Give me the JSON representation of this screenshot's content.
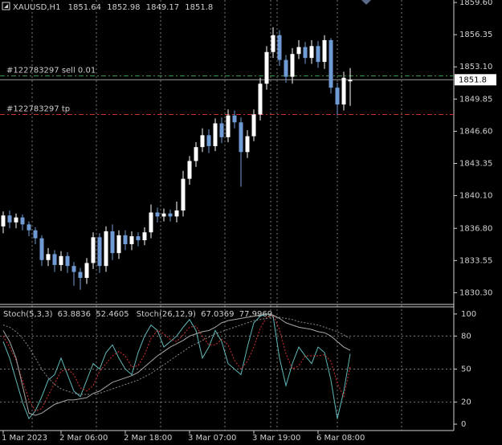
{
  "chart_data": [
    {
      "type": "candlestick",
      "symbol": "XAUUSD,H1",
      "categories": [
        "1 Mar 2023",
        null,
        null,
        null,
        null,
        null,
        null,
        null,
        null,
        "2 Mar 06:00",
        null,
        null,
        null,
        null,
        null,
        null,
        null,
        null,
        null,
        "2 Mar 18:00",
        null,
        null,
        null,
        null,
        null,
        null,
        null,
        null,
        null,
        "3 Mar 07:00",
        null,
        null,
        null,
        null,
        null,
        null,
        null,
        null,
        null,
        "3 Mar 19:00",
        null,
        null,
        null,
        null,
        null,
        null,
        null,
        null,
        null,
        "6 Mar 08:00",
        null,
        null,
        null,
        null,
        null
      ],
      "open": [
        1837.0,
        1838.1,
        1837.4,
        1837.9,
        1837.2,
        1836.6,
        1835.8,
        1833.6,
        1834.2,
        1833.1,
        1834.0,
        1833.0,
        1832.4,
        1831.8,
        1833.3,
        1835.9,
        1833.0,
        1836.5,
        1834.3,
        1836.1,
        1835.2,
        1836.0,
        1835.6,
        1836.4,
        1838.4,
        1838.0,
        1838.3,
        1838.0,
        1838.6,
        1841.8,
        1843.6,
        1845.0,
        1846.2,
        1845.1,
        1847.4,
        1846.0,
        1848.2,
        1847.5,
        1844.5,
        1846.1,
        1848.3,
        1851.4,
        1854.6,
        1856.3,
        1853.8,
        1852.1,
        1854.4,
        1855.1,
        1854.0,
        1855.2,
        1853.6,
        1855.8,
        1851.0,
        1849.3,
        1851.64
      ],
      "high": [
        1838.5,
        1838.6,
        1838.3,
        1838.2,
        1837.5,
        1836.9,
        1836.1,
        1834.8,
        1834.6,
        1834.5,
        1834.4,
        1833.4,
        1832.8,
        1833.8,
        1836.4,
        1836.3,
        1837.0,
        1837.2,
        1836.6,
        1836.6,
        1836.5,
        1836.4,
        1836.9,
        1839.2,
        1838.9,
        1838.8,
        1838.7,
        1839.5,
        1842.6,
        1844.1,
        1845.5,
        1846.9,
        1846.8,
        1847.9,
        1848.0,
        1848.8,
        1848.7,
        1848.0,
        1846.7,
        1848.8,
        1852.0,
        1855.2,
        1857.1,
        1856.8,
        1854.3,
        1855.0,
        1855.8,
        1855.6,
        1855.8,
        1855.7,
        1856.3,
        1856.0,
        1851.5,
        1852.6,
        1852.98
      ],
      "low": [
        1836.3,
        1836.8,
        1836.8,
        1836.6,
        1836.0,
        1835.2,
        1833.0,
        1833.0,
        1832.4,
        1832.5,
        1832.3,
        1831.0,
        1830.6,
        1831.2,
        1832.7,
        1832.3,
        1832.4,
        1833.6,
        1833.7,
        1834.6,
        1834.6,
        1835.0,
        1835.1,
        1835.8,
        1837.4,
        1837.5,
        1837.5,
        1837.4,
        1838.0,
        1841.2,
        1843.0,
        1844.5,
        1844.4,
        1844.6,
        1845.4,
        1845.5,
        1846.9,
        1841.0,
        1843.9,
        1845.6,
        1847.7,
        1850.8,
        1854.0,
        1853.2,
        1851.5,
        1851.4,
        1853.9,
        1853.4,
        1853.4,
        1853.0,
        1852.9,
        1850.4,
        1848.2,
        1848.7,
        1849.17
      ],
      "close": [
        1838.1,
        1837.4,
        1837.9,
        1837.2,
        1836.6,
        1835.8,
        1833.6,
        1834.2,
        1833.1,
        1834.0,
        1833.0,
        1832.4,
        1831.8,
        1833.3,
        1835.9,
        1833.0,
        1836.5,
        1834.3,
        1836.1,
        1835.2,
        1836.0,
        1835.6,
        1836.4,
        1838.4,
        1838.0,
        1838.3,
        1838.0,
        1838.6,
        1841.8,
        1843.6,
        1845.0,
        1846.2,
        1845.1,
        1847.4,
        1846.0,
        1848.2,
        1847.5,
        1844.5,
        1846.1,
        1848.3,
        1851.4,
        1854.6,
        1856.3,
        1853.8,
        1852.1,
        1854.4,
        1855.1,
        1854.0,
        1855.2,
        1853.6,
        1855.8,
        1851.0,
        1849.3,
        1852.0,
        1851.8
      ],
      "up_color": "#ffffff",
      "down_color": "#6f9bd4",
      "ylim": [
        1829.2,
        1859.85
      ],
      "yticks": [
        {
          "value": 1859.6,
          "label": "1859.60"
        },
        1856.35,
        {
          "value": 1853.1,
          "label": "1853.10"
        },
        1849.85,
        {
          "value": 1846.6,
          "label": "1846.60"
        },
        1843.35,
        {
          "value": 1840.1,
          "label": "1840.10"
        },
        {
          "value": 1836.8,
          "label": "1836.80"
        },
        1833.55,
        {
          "value": 1830.3,
          "label": "1830.30"
        }
      ],
      "annotations": [
        {
          "text": "#122783297 sell 0.01",
          "value": 1852.2,
          "color": "#3fa34d"
        },
        {
          "text": "#122783297 tp",
          "value": 1848.3,
          "color": "#d0302a"
        }
      ]
    },
    {
      "type": "line",
      "series": [
        {
          "name": "Stoch(5,3,3)",
          "color": "#5fb8b8",
          "dash": false,
          "values": [
            75,
            60,
            40,
            20,
            5,
            12,
            25,
            40,
            45,
            60,
            45,
            30,
            25,
            40,
            55,
            50,
            65,
            72,
            60,
            50,
            45,
            65,
            80,
            90,
            85,
            70,
            75,
            80,
            88,
            95,
            85,
            60,
            70,
            85,
            75,
            55,
            50,
            45,
            70,
            92,
            98,
            100,
            98,
            60,
            35,
            55,
            70,
            62,
            55,
            70,
            65,
            40,
            5,
            30,
            63.8836
          ]
        },
        {
          "color": "#d43030",
          "dash": true,
          "values": [
            80,
            70,
            58,
            40,
            22,
            12,
            14,
            26,
            37,
            48,
            50,
            45,
            33,
            30,
            35,
            48,
            55,
            62,
            66,
            62,
            52,
            53,
            63,
            78,
            85,
            82,
            77,
            75,
            81,
            88,
            89,
            80,
            72,
            72,
            77,
            72,
            58,
            50,
            57,
            70,
            87,
            97,
            99,
            86,
            64,
            50,
            53,
            62,
            62,
            62,
            63,
            57,
            37,
            25,
            52.4605
          ]
        },
        {
          "name": "Stoch(26,12,9)",
          "color": "#a8a8a8",
          "dash": false,
          "values": [
            85,
            75,
            60,
            35,
            10,
            8,
            10,
            14,
            18,
            20,
            22,
            22,
            23,
            24,
            28,
            30,
            34,
            38,
            40,
            42,
            44,
            47,
            52,
            57,
            62,
            66,
            70,
            73,
            76,
            80,
            82,
            84,
            85,
            88,
            92,
            94,
            95,
            96,
            97,
            98,
            99,
            100,
            99,
            96,
            92,
            90,
            88,
            87,
            86,
            84,
            83,
            80,
            75,
            70,
            67.0369
          ]
        },
        {
          "color": "#8a8a8a",
          "dash": true,
          "values": [
            90,
            88,
            84,
            78,
            70,
            60,
            50,
            42,
            36,
            32,
            30,
            28,
            27,
            27,
            27,
            28,
            30,
            32,
            34,
            36,
            38,
            40,
            43,
            46,
            50,
            54,
            58,
            62,
            66,
            70,
            73,
            76,
            79,
            82,
            84,
            86,
            88,
            90,
            92,
            94,
            95,
            96,
            97,
            97,
            96,
            95,
            93,
            92,
            91,
            90,
            88,
            86,
            84,
            81,
            77.9969
          ]
        }
      ],
      "ylim": [
        -5.8,
        106.5
      ],
      "yticks": [
        100,
        80,
        50,
        20,
        0
      ],
      "grid": true
    }
  ]
}
